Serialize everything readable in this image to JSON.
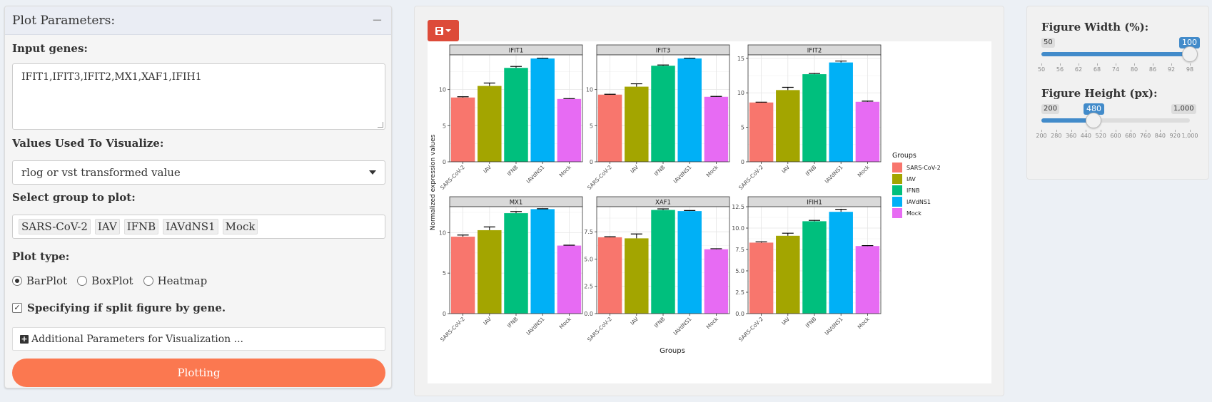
{
  "left": {
    "title": "Plot Parameters:",
    "collapse": "−",
    "genes_label": "Input genes:",
    "genes_value": "IFIT1,IFIT3,IFIT2,MX1,XAF1,IFIH1",
    "values_label": "Values Used To Visualize:",
    "values_selected": "rlog or vst transformed value",
    "group_label": "Select group to plot:",
    "groups": [
      "SARS-CoV-2",
      "IAV",
      "IFNB",
      "IAVdNS1",
      "Mock"
    ],
    "plot_type_label": "Plot type:",
    "plot_types": [
      "BarPlot",
      "BoxPlot",
      "Heatmap"
    ],
    "plot_type_selected": "BarPlot",
    "split_label": "Specifying if split figure by gene.",
    "split_checked": true,
    "additional_label": "Additional Parameters for Visualization ...",
    "plot_button": "Plotting"
  },
  "right": {
    "width": {
      "label": "Figure Width (%):",
      "min": 50,
      "max": 100,
      "value": 100,
      "min_label": "50",
      "value_label": "100",
      "ticks": [
        "50",
        "56",
        "62",
        "68",
        "74",
        "80",
        "86",
        "92",
        "98"
      ]
    },
    "height": {
      "label": "Figure Height (px):",
      "min": 200,
      "max": 1000,
      "value": 480,
      "min_label": "200",
      "value_label": "480",
      "max_label": "1,000",
      "ticks": [
        "200",
        "280",
        "360",
        "440",
        "520",
        "600",
        "680",
        "760",
        "840",
        "920",
        "1,000"
      ]
    }
  },
  "colors": {
    "accent_red": "#dd4b39",
    "plot_button": "#fb7850",
    "slider_blue": "#428bca"
  },
  "chart_data": {
    "type": "bar",
    "xlabel": "Groups",
    "ylabel": "Normalized expression values",
    "legend_title": "Groups",
    "legend_position": "right",
    "grid": true,
    "categories": [
      "SARS-CoV-2",
      "IAV",
      "IFNB",
      "IAVdNS1",
      "Mock"
    ],
    "colors": [
      "#f8766d",
      "#a3a500",
      "#00bf7d",
      "#00b0f6",
      "#e76bf3"
    ],
    "panels": [
      {
        "title": "IFIT1",
        "values": [
          8.9,
          10.5,
          13.0,
          14.3,
          8.7
        ],
        "errors": [
          0.1,
          0.4,
          0.2,
          0.05,
          0.05
        ],
        "ylim": [
          0,
          14.8
        ],
        "yticks": [
          0,
          5,
          10
        ],
        "ytick_labels": [
          "0",
          "5",
          "10"
        ]
      },
      {
        "title": "IFIT3",
        "values": [
          9.3,
          10.4,
          13.3,
          14.3,
          9.0
        ],
        "errors": [
          0.05,
          0.4,
          0.1,
          0.05,
          0.05
        ],
        "ylim": [
          0,
          14.8
        ],
        "yticks": [
          0,
          5,
          10
        ],
        "ytick_labels": [
          "0",
          "5",
          "10"
        ]
      },
      {
        "title": "IFIT2",
        "values": [
          8.6,
          10.4,
          12.7,
          14.4,
          8.7
        ],
        "errors": [
          0.05,
          0.4,
          0.1,
          0.2,
          0.1
        ],
        "ylim": [
          0,
          15.5
        ],
        "yticks": [
          0,
          5,
          10,
          15
        ],
        "ytick_labels": [
          "0",
          "5",
          "10",
          "15"
        ]
      },
      {
        "title": "MX1",
        "values": [
          9.5,
          10.3,
          12.4,
          12.9,
          8.4
        ],
        "errors": [
          0.2,
          0.4,
          0.2,
          0.05,
          0.05
        ],
        "ylim": [
          0,
          13.2
        ],
        "yticks": [
          0,
          5,
          10
        ],
        "ytick_labels": [
          "0",
          "5",
          "10"
        ]
      },
      {
        "title": "XAF1",
        "values": [
          7.0,
          6.9,
          9.5,
          9.4,
          5.9
        ],
        "errors": [
          0.05,
          0.4,
          0.1,
          0.05,
          0.05
        ],
        "ylim": [
          0,
          9.8
        ],
        "yticks": [
          0,
          2.5,
          5,
          7.5
        ],
        "ytick_labels": [
          "0.0",
          "2.5",
          "5.0",
          "7.5"
        ]
      },
      {
        "title": "IFIH1",
        "values": [
          8.3,
          9.1,
          10.8,
          11.9,
          7.9
        ],
        "errors": [
          0.1,
          0.3,
          0.1,
          0.3,
          0.05
        ],
        "ylim": [
          0,
          12.5
        ],
        "yticks": [
          0,
          2.5,
          5,
          7.5,
          10,
          12.5
        ],
        "ytick_labels": [
          "0.0",
          "2.5",
          "5.0",
          "7.5",
          "10.0",
          "12.5"
        ]
      }
    ]
  }
}
